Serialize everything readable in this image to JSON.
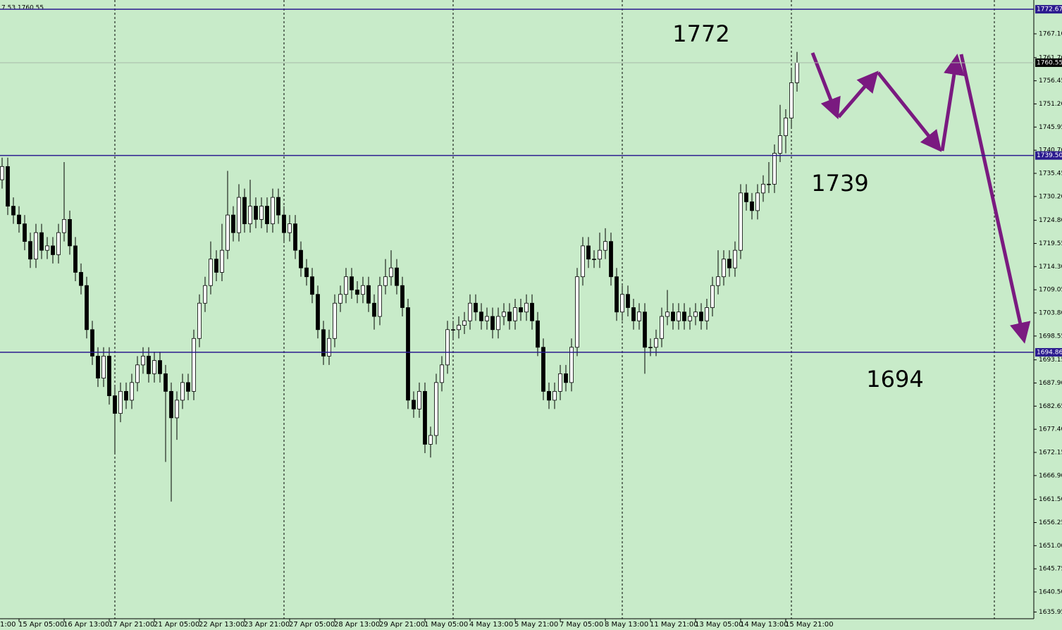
{
  "chart_data": {
    "type": "candlestick",
    "header_text": "7.53 1760.55",
    "x_edge_label": "1:00",
    "categories": [
      null,
      null,
      null,
      "15 Apr 05:00",
      null,
      null,
      null,
      null,
      null,
      null,
      null,
      "16 Apr 13:00",
      null,
      null,
      null,
      null,
      null,
      null,
      null,
      "17 Apr 21:00",
      null,
      null,
      null,
      null,
      null,
      null,
      null,
      "21 Apr 05:00",
      null,
      null,
      null,
      null,
      null,
      null,
      null,
      "22 Apr 13:00",
      null,
      null,
      null,
      null,
      null,
      null,
      null,
      "23 Apr 21:00",
      null,
      null,
      null,
      null,
      null,
      null,
      null,
      "27 Apr 05:00",
      null,
      null,
      null,
      null,
      null,
      null,
      null,
      "28 Apr 13:00",
      null,
      null,
      null,
      null,
      null,
      null,
      null,
      "29 Apr 21:00",
      null,
      null,
      null,
      null,
      null,
      null,
      null,
      "1 May 05:00",
      null,
      null,
      null,
      null,
      null,
      null,
      null,
      "4 May 13:00",
      null,
      null,
      null,
      null,
      null,
      null,
      null,
      "5 May 21:00",
      null,
      null,
      null,
      null,
      null,
      null,
      null,
      "7 May 05:00",
      null,
      null,
      null,
      null,
      null,
      null,
      null,
      "8 May 13:00",
      null,
      null,
      null,
      null,
      null,
      null,
      null,
      "11 May 21:00",
      null,
      null,
      null,
      null,
      null,
      null,
      null,
      "13 May 05:00",
      null,
      null,
      null,
      null,
      null,
      null,
      null,
      "14 May 13:00",
      null,
      null,
      null,
      null,
      null,
      null,
      null,
      "15 May 21:00",
      null,
      null
    ],
    "ohlc": [
      [
        1734,
        1739,
        1732,
        1737
      ],
      [
        1737,
        1739,
        1726,
        1728
      ],
      [
        1728,
        1730,
        1724,
        1726
      ],
      [
        1726,
        1728,
        1722,
        1724
      ],
      [
        1724,
        1726,
        1718,
        1720
      ],
      [
        1720,
        1722,
        1714,
        1716
      ],
      [
        1716,
        1724,
        1714,
        1722
      ],
      [
        1722,
        1724,
        1716,
        1718
      ],
      [
        1718,
        1721,
        1716,
        1719
      ],
      [
        1719,
        1721,
        1715,
        1717
      ],
      [
        1717,
        1724,
        1715,
        1722
      ],
      [
        1722,
        1738,
        1720,
        1725
      ],
      [
        1725,
        1727,
        1717,
        1719
      ],
      [
        1719,
        1721,
        1711,
        1713
      ],
      [
        1713,
        1715,
        1708,
        1710
      ],
      [
        1710,
        1712,
        1698,
        1700
      ],
      [
        1700,
        1702,
        1692,
        1694
      ],
      [
        1694,
        1696,
        1687,
        1689
      ],
      [
        1689,
        1696,
        1687,
        1694
      ],
      [
        1694,
        1696,
        1683,
        1685
      ],
      [
        1685,
        1687,
        1672,
        1681
      ],
      [
        1681,
        1688,
        1679,
        1686
      ],
      [
        1686,
        1688,
        1682,
        1684
      ],
      [
        1684,
        1690,
        1682,
        1688
      ],
      [
        1688,
        1694,
        1686,
        1692
      ],
      [
        1692,
        1696,
        1690,
        1694
      ],
      [
        1694,
        1696,
        1688,
        1690
      ],
      [
        1690,
        1695,
        1688,
        1693
      ],
      [
        1693,
        1695,
        1688,
        1690
      ],
      [
        1690,
        1692,
        1670,
        1686
      ],
      [
        1686,
        1688,
        1661,
        1680
      ],
      [
        1680,
        1686,
        1675,
        1684
      ],
      [
        1684,
        1690,
        1682,
        1688
      ],
      [
        1688,
        1690,
        1684,
        1686
      ],
      [
        1686,
        1700,
        1684,
        1698
      ],
      [
        1698,
        1708,
        1696,
        1706
      ],
      [
        1706,
        1712,
        1704,
        1710
      ],
      [
        1710,
        1720,
        1708,
        1716
      ],
      [
        1716,
        1718,
        1711,
        1713
      ],
      [
        1713,
        1724,
        1711,
        1718
      ],
      [
        1718,
        1736,
        1716,
        1726
      ],
      [
        1726,
        1728,
        1720,
        1722
      ],
      [
        1722,
        1733,
        1720,
        1730
      ],
      [
        1730,
        1732,
        1722,
        1724
      ],
      [
        1724,
        1734,
        1722,
        1728
      ],
      [
        1728,
        1730,
        1723,
        1725
      ],
      [
        1725,
        1730,
        1723,
        1728
      ],
      [
        1728,
        1730,
        1722,
        1724
      ],
      [
        1724,
        1732,
        1722,
        1730
      ],
      [
        1730,
        1732,
        1724,
        1726
      ],
      [
        1726,
        1728,
        1720,
        1722
      ],
      [
        1722,
        1726,
        1720,
        1724
      ],
      [
        1724,
        1726,
        1716,
        1718
      ],
      [
        1718,
        1720,
        1712,
        1714
      ],
      [
        1714,
        1716,
        1710,
        1712
      ],
      [
        1712,
        1714,
        1706,
        1708
      ],
      [
        1708,
        1710,
        1698,
        1700
      ],
      [
        1700,
        1702,
        1692,
        1694
      ],
      [
        1694,
        1700,
        1692,
        1698
      ],
      [
        1698,
        1708,
        1696,
        1706
      ],
      [
        1706,
        1710,
        1704,
        1708
      ],
      [
        1708,
        1714,
        1706,
        1712
      ],
      [
        1712,
        1714,
        1707,
        1709
      ],
      [
        1709,
        1711,
        1706,
        1708
      ],
      [
        1708,
        1712,
        1706,
        1710
      ],
      [
        1710,
        1712,
        1704,
        1706
      ],
      [
        1706,
        1708,
        1700,
        1703
      ],
      [
        1703,
        1712,
        1701,
        1710
      ],
      [
        1710,
        1716,
        1708,
        1712
      ],
      [
        1712,
        1718,
        1710,
        1714
      ],
      [
        1714,
        1716,
        1708,
        1710
      ],
      [
        1710,
        1712,
        1703,
        1705
      ],
      [
        1705,
        1707,
        1682,
        1684
      ],
      [
        1684,
        1686,
        1680,
        1682
      ],
      [
        1682,
        1688,
        1680,
        1686
      ],
      [
        1686,
        1688,
        1672,
        1674
      ],
      [
        1674,
        1678,
        1671,
        1676
      ],
      [
        1676,
        1690,
        1674,
        1688
      ],
      [
        1688,
        1694,
        1686,
        1692
      ],
      [
        1692,
        1702,
        1690,
        1700
      ],
      [
        1700,
        1702,
        1698,
        1700
      ],
      [
        1700,
        1703,
        1698,
        1701
      ],
      [
        1701,
        1704,
        1699,
        1702
      ],
      [
        1702,
        1708,
        1700,
        1706
      ],
      [
        1706,
        1708,
        1702,
        1704
      ],
      [
        1704,
        1706,
        1700,
        1702
      ],
      [
        1702,
        1705,
        1700,
        1703
      ],
      [
        1703,
        1705,
        1698,
        1700
      ],
      [
        1700,
        1705,
        1698,
        1703
      ],
      [
        1703,
        1706,
        1701,
        1704
      ],
      [
        1704,
        1706,
        1700,
        1702
      ],
      [
        1702,
        1707,
        1700,
        1705
      ],
      [
        1705,
        1707,
        1702,
        1704
      ],
      [
        1704,
        1708,
        1702,
        1706
      ],
      [
        1706,
        1708,
        1700,
        1702
      ],
      [
        1702,
        1704,
        1694,
        1696
      ],
      [
        1696,
        1698,
        1684,
        1686
      ],
      [
        1686,
        1688,
        1682,
        1684
      ],
      [
        1684,
        1688,
        1682,
        1686
      ],
      [
        1686,
        1692,
        1684,
        1690
      ],
      [
        1690,
        1692,
        1686,
        1688
      ],
      [
        1688,
        1698,
        1686,
        1696
      ],
      [
        1696,
        1714,
        1694,
        1712
      ],
      [
        1712,
        1721,
        1710,
        1719
      ],
      [
        1719,
        1721,
        1714,
        1716
      ],
      [
        1716,
        1718,
        1714,
        1716
      ],
      [
        1716,
        1722,
        1714,
        1718
      ],
      [
        1718,
        1723,
        1716,
        1720
      ],
      [
        1720,
        1722,
        1710,
        1712
      ],
      [
        1712,
        1714,
        1702,
        1704
      ],
      [
        1704,
        1710,
        1702,
        1708
      ],
      [
        1708,
        1710,
        1703,
        1705
      ],
      [
        1705,
        1707,
        1700,
        1702
      ],
      [
        1702,
        1706,
        1700,
        1704
      ],
      [
        1704,
        1706,
        1690,
        1696
      ],
      [
        1696,
        1698,
        1694,
        1696
      ],
      [
        1696,
        1700,
        1694,
        1698
      ],
      [
        1698,
        1705,
        1696,
        1703
      ],
      [
        1703,
        1709,
        1701,
        1704
      ],
      [
        1704,
        1706,
        1700,
        1702
      ],
      [
        1702,
        1706,
        1700,
        1704
      ],
      [
        1704,
        1706,
        1700,
        1702
      ],
      [
        1702,
        1705,
        1700,
        1703
      ],
      [
        1703,
        1706,
        1701,
        1704
      ],
      [
        1704,
        1706,
        1700,
        1702
      ],
      [
        1702,
        1707,
        1700,
        1705
      ],
      [
        1705,
        1712,
        1703,
        1710
      ],
      [
        1710,
        1718,
        1708,
        1712
      ],
      [
        1712,
        1718,
        1710,
        1716
      ],
      [
        1716,
        1718,
        1712,
        1714
      ],
      [
        1714,
        1720,
        1712,
        1718
      ],
      [
        1718,
        1733,
        1716,
        1731
      ],
      [
        1731,
        1733,
        1727,
        1729
      ],
      [
        1729,
        1731,
        1725,
        1727
      ],
      [
        1727,
        1733,
        1725,
        1731
      ],
      [
        1731,
        1735,
        1729,
        1733
      ],
      [
        1733,
        1738,
        1731,
        1733
      ],
      [
        1733,
        1742,
        1731,
        1740
      ],
      [
        1740,
        1751,
        1738,
        1744
      ],
      [
        1744,
        1750,
        1740,
        1748
      ],
      [
        1748,
        1759,
        1746,
        1756
      ],
      [
        1756,
        1763,
        1754,
        1760.55
      ]
    ],
    "ylim": [
      1634.43,
      1774.77
    ],
    "yticks": [
      {
        "value": 1767.1,
        "label": "1767.10"
      },
      {
        "value": 1761.7,
        "label": "1761.70"
      },
      1756.45,
      {
        "value": 1751.2,
        "label": "1751.20"
      },
      1745.95,
      {
        "value": 1740.7,
        "label": "1740.70"
      },
      1735.45,
      {
        "value": 1730.2,
        "label": "1730.20"
      },
      {
        "value": 1724.8,
        "label": "1724.80"
      },
      1719.55,
      {
        "value": 1714.3,
        "label": "1714.30"
      },
      1709.05,
      {
        "value": 1703.8,
        "label": "1703.80"
      },
      1698.55,
      1693.15,
      {
        "value": 1687.9,
        "label": "1687.90"
      },
      1682.65,
      {
        "value": 1677.4,
        "label": "1677.40"
      },
      1672.15,
      {
        "value": 1666.9,
        "label": "1666.90"
      },
      {
        "value": 1661.5,
        "label": "1661.50"
      },
      1656.25,
      {
        "value": 1651,
        "label": "1651.00"
      },
      1645.75,
      {
        "value": 1640.5,
        "label": "1640.50"
      },
      1635.95
    ],
    "levels": [
      1772.67,
      {
        "value": 1739.5,
        "label": "1739.50"
      },
      1694.86
    ],
    "current_price": 1760.55,
    "annotations": [
      "1772",
      "1739",
      "1694"
    ],
    "colors": {
      "level": "#2b1b8f",
      "bull": "#ffffff",
      "bear": "#000000",
      "annotation": "#7a1a80"
    }
  }
}
